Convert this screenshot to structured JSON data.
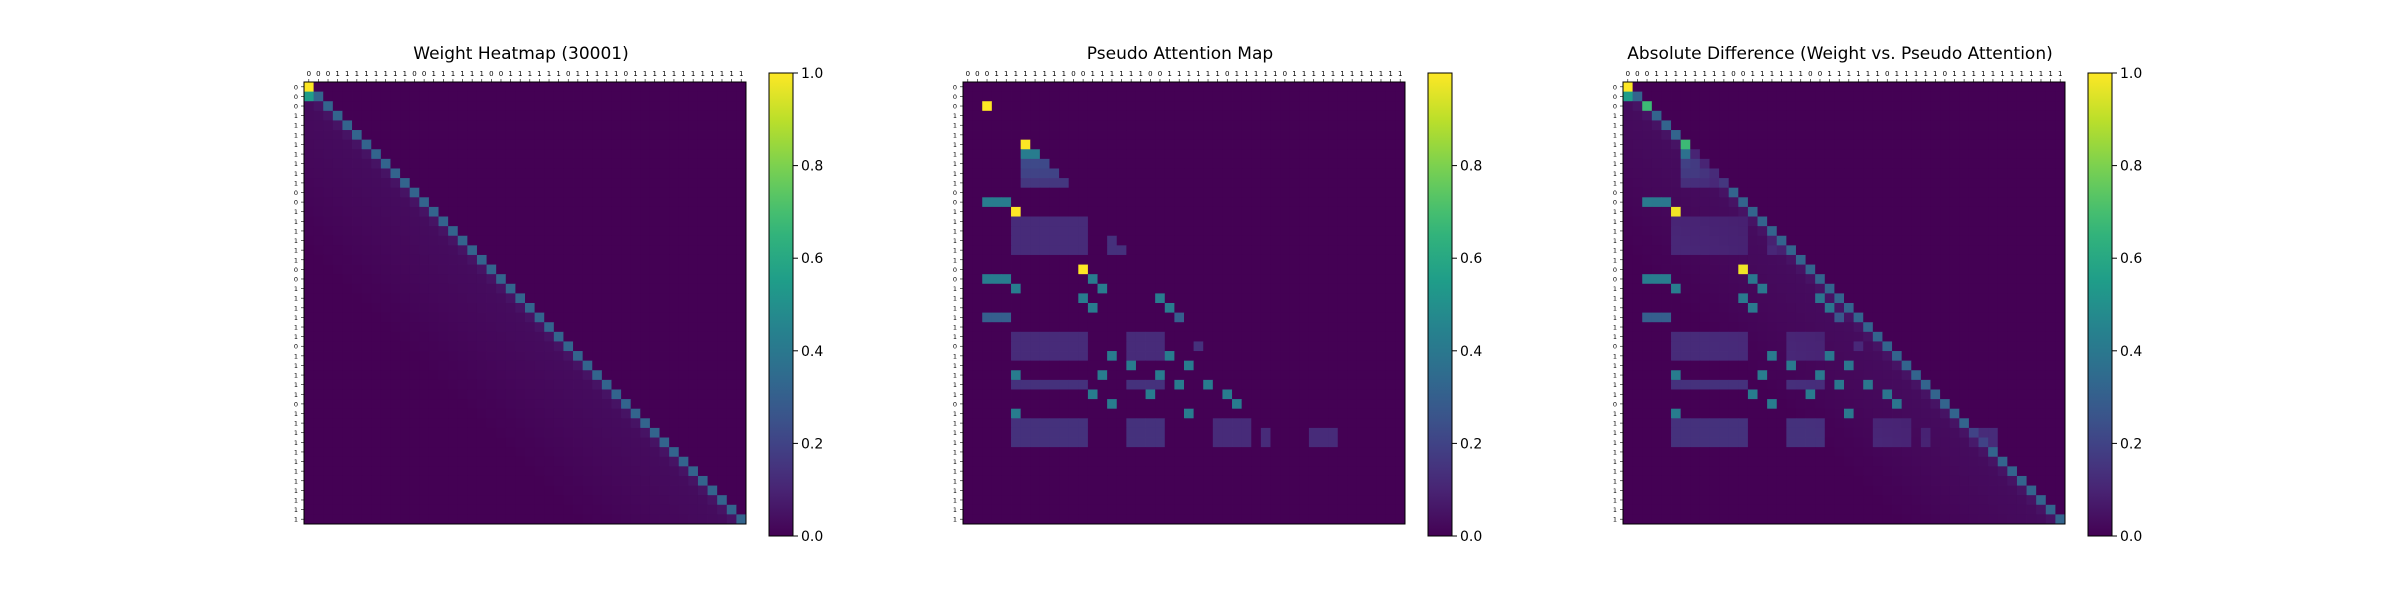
{
  "tokens": [
    "0",
    "0",
    "0",
    "1",
    "1",
    "1",
    "1",
    "1",
    "1",
    "1",
    "1",
    "0",
    "0",
    "1",
    "1",
    "1",
    "1",
    "1",
    "1",
    "0",
    "0",
    "1",
    "1",
    "1",
    "1",
    "1",
    "1",
    "0",
    "1",
    "1",
    "1",
    "1",
    "1",
    "0",
    "1",
    "1",
    "1",
    "1",
    "1",
    "1",
    "1",
    "1",
    "1",
    "1",
    "1",
    "1"
  ],
  "colormap": "viridis",
  "chart_data": [
    {
      "type": "heatmap",
      "title": "Weight Heatmap (30001)",
      "colorbar": {
        "min": 0.0,
        "max": 1.0,
        "ticks": [
          "0.0",
          "0.2",
          "0.4",
          "0.6",
          "0.8",
          "1.0"
        ]
      },
      "pattern": "banded lower-triangular: diagonal ≈ 0.30–0.35, first cell 1.0, second-row first cell ≈ 0.55, values decay rapidly below the diagonal, upper triangle 0",
      "grid": false
    },
    {
      "type": "heatmap",
      "title": "Pseudo Attention Map",
      "colorbar": {
        "min": 0.0,
        "max": 1.0,
        "ticks": [
          "0.0",
          "0.2",
          "0.4",
          "0.6",
          "0.8"
        ]
      },
      "pattern": "sparse block structure: isolated 1.0 cells, ≈0.4 cells and ≈0.12 rectangular blocks in the lower triangle",
      "grid": false
    },
    {
      "type": "heatmap",
      "title": "Absolute Difference (Weight vs. Pseudo Attention)",
      "colorbar": {
        "min": 0.0,
        "max": 1.0,
        "ticks": [
          "0.0",
          "0.2",
          "0.4",
          "0.6",
          "0.8",
          "1.0"
        ]
      },
      "pattern": "|weight − pseudo attention| per cell",
      "grid": false
    }
  ]
}
